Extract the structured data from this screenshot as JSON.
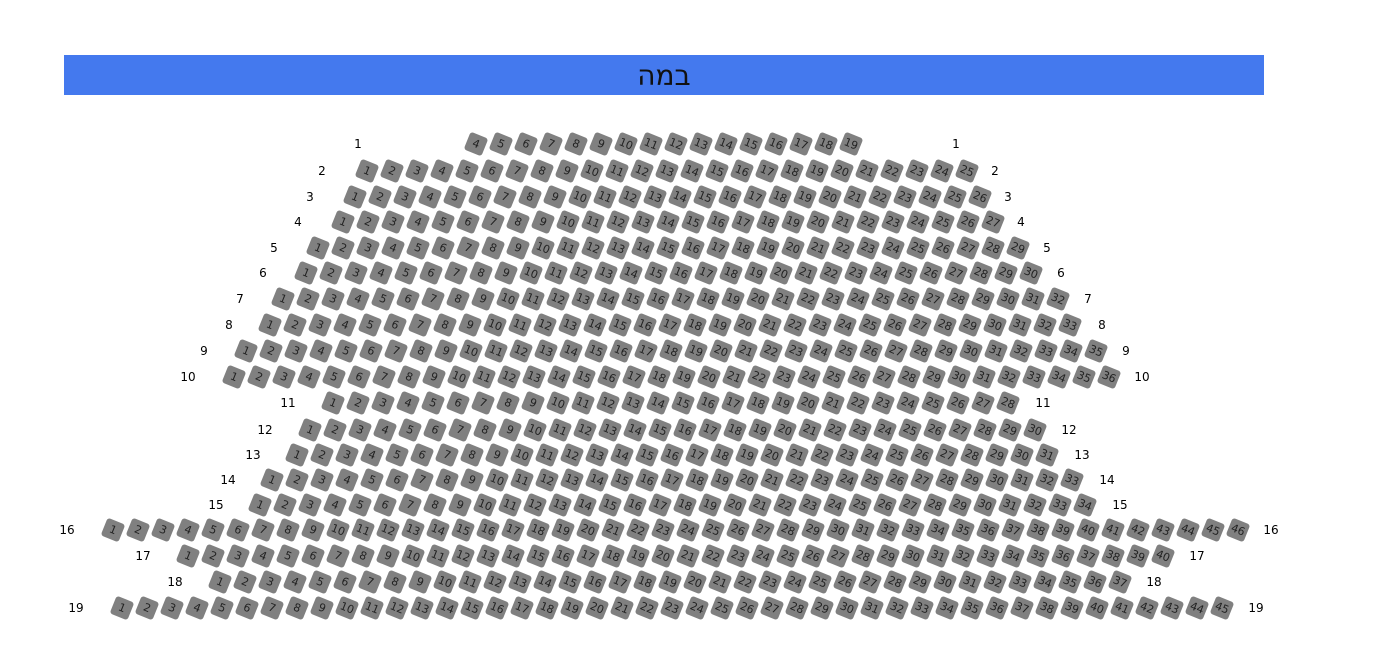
{
  "stage": {
    "label": "במה",
    "color": "#4479ee"
  },
  "seat_color": "#808080",
  "rows": [
    {
      "label": "1",
      "first": 4,
      "last": 19
    },
    {
      "label": "2",
      "first": 1,
      "last": 25
    },
    {
      "label": "3",
      "first": 1,
      "last": 26
    },
    {
      "label": "4",
      "first": 1,
      "last": 27
    },
    {
      "label": "5",
      "first": 1,
      "last": 29
    },
    {
      "label": "6",
      "first": 1,
      "last": 30
    },
    {
      "label": "7",
      "first": 1,
      "last": 32
    },
    {
      "label": "8",
      "first": 1,
      "last": 33
    },
    {
      "label": "9",
      "first": 1,
      "last": 35
    },
    {
      "label": "10",
      "first": 1,
      "last": 36
    },
    {
      "label": "11",
      "first": 1,
      "last": 28
    },
    {
      "label": "12",
      "first": 1,
      "last": 30
    },
    {
      "label": "13",
      "first": 1,
      "last": 31
    },
    {
      "label": "14",
      "first": 1,
      "last": 33
    },
    {
      "label": "15",
      "first": 1,
      "last": 34
    },
    {
      "label": "16",
      "first": 1,
      "last": 46
    },
    {
      "label": "17",
      "first": 1,
      "last": 40
    },
    {
      "label": "18",
      "first": 1,
      "last": 37
    },
    {
      "label": "19",
      "first": 1,
      "last": 45
    }
  ]
}
